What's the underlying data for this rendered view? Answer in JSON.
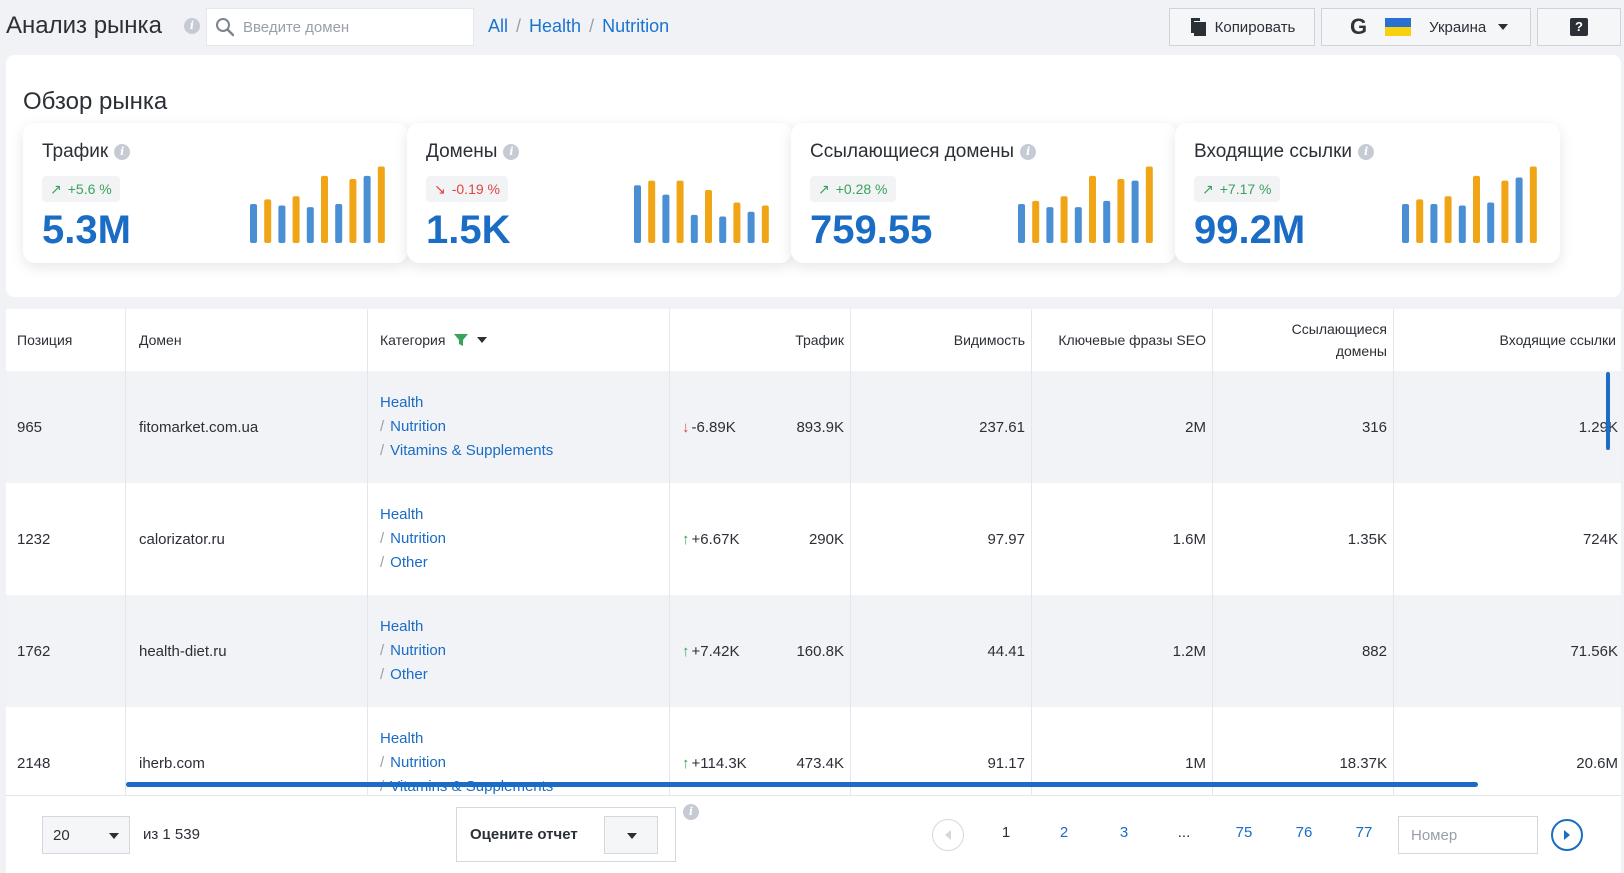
{
  "header": {
    "title": "Анализ рынка",
    "search_placeholder": "Введите домен",
    "breadcrumbs": [
      "All",
      "Health",
      "Nutrition"
    ],
    "copy_label": "Копировать",
    "engine_letter": "G",
    "country": "Украина",
    "help": "?"
  },
  "overview": {
    "title": "Обзор рынка",
    "cards": [
      {
        "name": "Трафик",
        "change": "+5.6 %",
        "direction": "up",
        "value": "5.3M"
      },
      {
        "name": "Домены",
        "change": "-0.19 %",
        "direction": "down",
        "value": "1.5K"
      },
      {
        "name": "Ссылающиеся домены",
        "change": "+0.28 %",
        "direction": "up",
        "value": "759.55"
      },
      {
        "name": "Входящие ссылки",
        "change": "+7.17 %",
        "direction": "up",
        "value": "99.2M"
      }
    ]
  },
  "sparklines": [
    [
      0.5,
      0.56,
      0.48,
      0.6,
      0.46,
      0.86,
      0.5,
      0.82,
      0.86,
      0.98
    ],
    [
      0.74,
      0.8,
      0.62,
      0.8,
      0.36,
      0.68,
      0.34,
      0.52,
      0.4,
      0.48
    ],
    [
      0.5,
      0.54,
      0.46,
      0.6,
      0.46,
      0.86,
      0.54,
      0.82,
      0.8,
      0.98
    ],
    [
      0.5,
      0.56,
      0.5,
      0.6,
      0.48,
      0.86,
      0.52,
      0.8,
      0.84,
      0.98
    ]
  ],
  "colors": {
    "blue": "#4a8fd4",
    "orange": "#f0a516",
    "accent": "#1a6cc4",
    "green": "#3aa35a",
    "red": "#e0443e"
  },
  "table": {
    "headers": {
      "position": "Позиция",
      "domain": "Домен",
      "category": "Категория",
      "traffic": "Трафик",
      "visibility": "Видимость",
      "keywords": "Ключевые фразы SEO",
      "ref_domains_line1": "Ссылающиеся",
      "ref_domains_line2": "домены",
      "backlinks": "Входящие ссылки"
    },
    "rows": [
      {
        "position": "965",
        "domain": "fitomarket.com.ua",
        "categories": [
          "Health",
          "Nutrition",
          "Vitamins & Supplements"
        ],
        "delta": "-6.89K",
        "delta_dir": "down",
        "traffic": "893.9K",
        "visibility": "237.61",
        "keywords": "2M",
        "ref_domains": "316",
        "backlinks": "1.29K"
      },
      {
        "position": "1232",
        "domain": "calorizator.ru",
        "categories": [
          "Health",
          "Nutrition",
          "Other"
        ],
        "delta": "+6.67K",
        "delta_dir": "up",
        "traffic": "290K",
        "visibility": "97.97",
        "keywords": "1.6M",
        "ref_domains": "1.35K",
        "backlinks": "724K"
      },
      {
        "position": "1762",
        "domain": "health-diet.ru",
        "categories": [
          "Health",
          "Nutrition",
          "Other"
        ],
        "delta": "+7.42K",
        "delta_dir": "up",
        "traffic": "160.8K",
        "visibility": "44.41",
        "keywords": "1.2M",
        "ref_domains": "882",
        "backlinks": "71.56K"
      },
      {
        "position": "2148",
        "domain": "iherb.com",
        "categories": [
          "Health",
          "Nutrition",
          "Vitamins & Supplements"
        ],
        "delta": "+114.3K",
        "delta_dir": "up",
        "traffic": "473.4K",
        "visibility": "91.17",
        "keywords": "1M",
        "ref_domains": "18.37K",
        "backlinks": "20.6M"
      }
    ]
  },
  "footer": {
    "per_page": "20",
    "of_total": "из 1 539",
    "rate_label": "Оцените отчет",
    "pages": [
      "1",
      "2",
      "3",
      "...",
      "75",
      "76",
      "77"
    ],
    "current_page": "1",
    "page_input_placeholder": "Номер"
  }
}
